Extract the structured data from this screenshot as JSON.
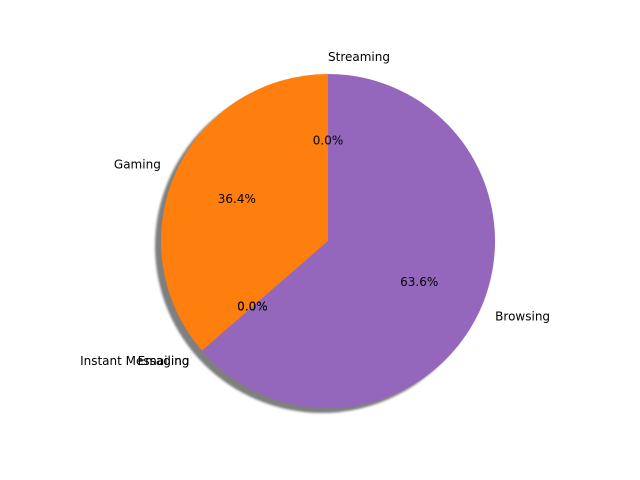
{
  "chart_data": {
    "type": "pie",
    "title": "",
    "shadow": true,
    "start_angle_deg": 90,
    "direction": "counterclockwise",
    "slices": [
      {
        "label": "Streaming",
        "value": 0.0,
        "pct_label": "0.0%",
        "color": "#1f77b4"
      },
      {
        "label": "Gaming",
        "value": 36.4,
        "pct_label": "36.4%",
        "color": "#ff7f0e"
      },
      {
        "label": "Instant Messaging",
        "value": 0.0,
        "pct_label": "0.0%",
        "color": "#2ca02c"
      },
      {
        "label": "Emailing",
        "value": 0.0,
        "pct_label": "0.0%",
        "color": "#d62728"
      },
      {
        "label": "Browsing",
        "value": 63.6,
        "pct_label": "63.6%",
        "color": "#9467bd"
      }
    ]
  }
}
